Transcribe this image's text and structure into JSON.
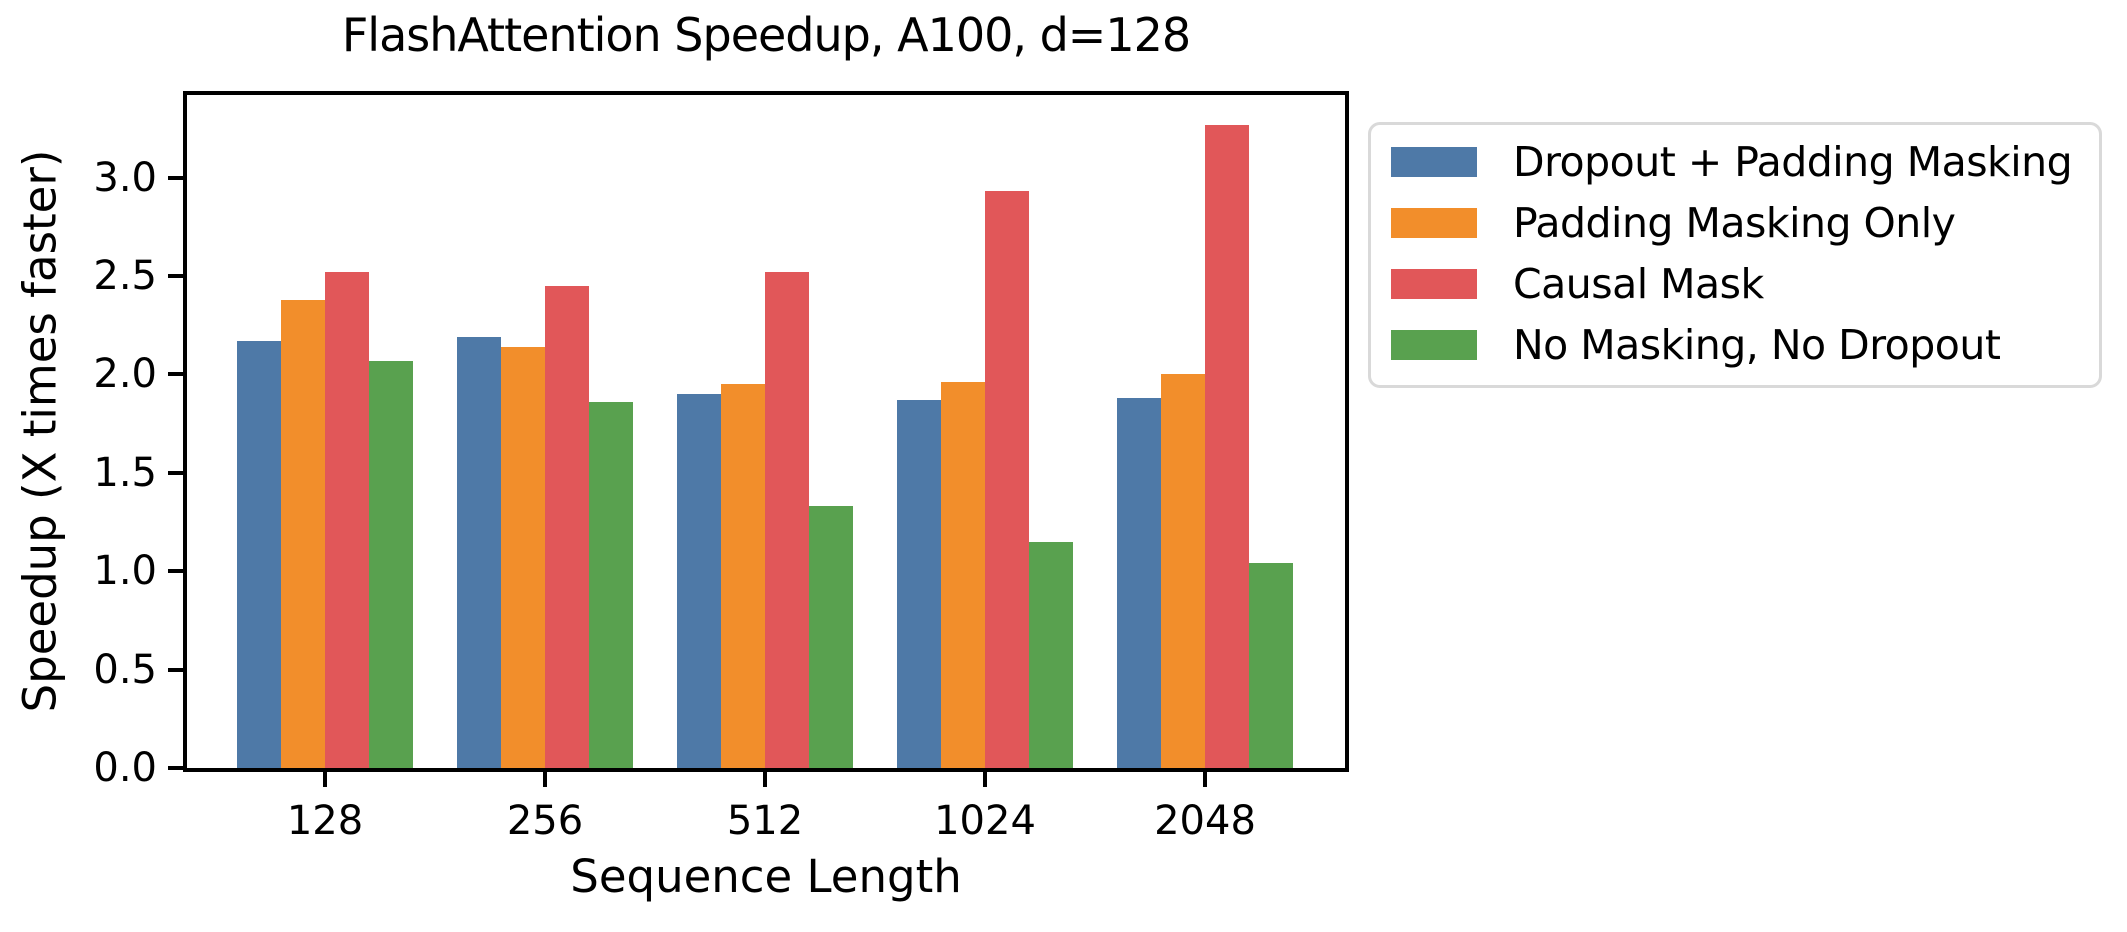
{
  "chart_data": {
    "type": "bar",
    "title": "FlashAttention Speedup, A100, d=128",
    "xlabel": "Sequence Length",
    "ylabel": "Speedup (X times faster)",
    "categories": [
      "128",
      "256",
      "512",
      "1024",
      "2048"
    ],
    "series": [
      {
        "name": "Dropout + Padding Masking",
        "color": "#4E79A7",
        "values": [
          2.17,
          2.19,
          1.9,
          1.87,
          1.88
        ]
      },
      {
        "name": "Padding Masking Only",
        "color": "#F28E2B",
        "values": [
          2.38,
          2.14,
          1.95,
          1.96,
          2.0
        ]
      },
      {
        "name": "Causal Mask",
        "color": "#E15759",
        "values": [
          2.52,
          2.45,
          2.52,
          2.93,
          3.27
        ]
      },
      {
        "name": "No Masking, No Dropout",
        "color": "#59A14F",
        "values": [
          2.07,
          1.86,
          1.33,
          1.15,
          1.04
        ]
      }
    ],
    "yticks": [
      0.0,
      0.5,
      1.0,
      1.5,
      2.0,
      2.5,
      3.0
    ],
    "ylim": [
      0,
      3.42
    ],
    "grid": false,
    "legend_position": "outside-right",
    "legend_border_color": "#d9d9d9",
    "axis_color": "#000000"
  }
}
